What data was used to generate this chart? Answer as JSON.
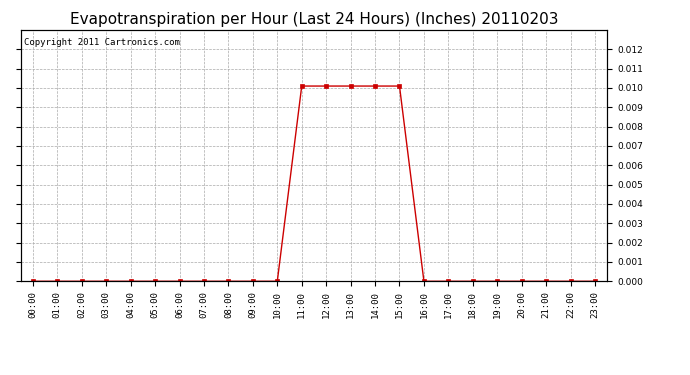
{
  "title": "Evapotranspiration per Hour (Last 24 Hours) (Inches) 20110203",
  "copyright": "Copyright 2011 Cartronics.com",
  "hours": [
    0,
    1,
    2,
    3,
    4,
    5,
    6,
    7,
    8,
    9,
    10,
    11,
    12,
    13,
    14,
    15,
    16,
    17,
    18,
    19,
    20,
    21,
    22,
    23
  ],
  "values": [
    0.0,
    0.0,
    0.0,
    0.0,
    0.0,
    0.0,
    0.0,
    0.0,
    0.0,
    0.0,
    0.0,
    0.0101,
    0.0101,
    0.0101,
    0.0101,
    0.0101,
    0.0,
    0.0,
    0.0,
    0.0,
    0.0,
    0.0,
    0.0,
    0.0
  ],
  "line_color": "#cc0000",
  "marker": "s",
  "marker_size": 2.5,
  "ylim": [
    0,
    0.013
  ],
  "yticks": [
    0.0,
    0.001,
    0.002,
    0.003,
    0.004,
    0.005,
    0.006,
    0.007,
    0.008,
    0.009,
    0.01,
    0.011,
    0.012
  ],
  "grid_color": "#aaaaaa",
  "bg_color": "#ffffff",
  "title_fontsize": 11,
  "copyright_fontsize": 6.5,
  "tick_label_fontsize": 6.5
}
